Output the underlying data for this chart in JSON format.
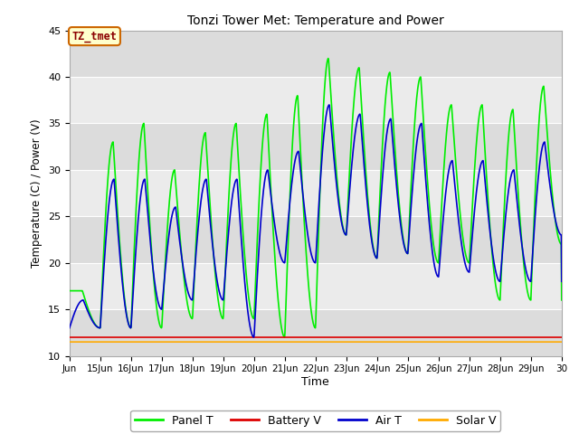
{
  "title": "Tonzi Tower Met: Temperature and Power",
  "xlabel": "Time",
  "ylabel": "Temperature (C) / Power (V)",
  "ylim": [
    10,
    45
  ],
  "yticks": [
    10,
    15,
    20,
    25,
    30,
    35,
    40,
    45
  ],
  "annotation_text": "TZ_tmet",
  "annotation_color": "#8b0000",
  "annotation_bg": "#ffffcc",
  "annotation_border": "#cc6600",
  "colors": {
    "panel_t": "#00ee00",
    "battery_v": "#dd0000",
    "air_t": "#0000cc",
    "solar_v": "#ffaa00"
  },
  "legend_labels": [
    "Panel T",
    "Battery V",
    "Air T",
    "Solar V"
  ],
  "x_tick_labels": [
    "Jun",
    "15Jun",
    "16Jun",
    "17Jun",
    "18Jun",
    "19Jun",
    "20Jun",
    "21Jun",
    "22Jun",
    "23Jun",
    "24Jun",
    "25Jun",
    "26Jun",
    "27Jun",
    "28Jun",
    "29Jun",
    "30"
  ],
  "panel_peaks_y": [
    17,
    33,
    35,
    30,
    34,
    35,
    36,
    38,
    42,
    41,
    40.5,
    40,
    37,
    37,
    36.5,
    39
  ],
  "panel_troughs_y": [
    17,
    13,
    13,
    13,
    14,
    14,
    14,
    12,
    13,
    23,
    20.5,
    21,
    20,
    20,
    16,
    16,
    22
  ],
  "air_peaks_y": [
    16,
    29,
    29,
    26,
    29,
    29,
    30,
    32,
    37,
    36,
    35.5,
    35,
    31,
    31,
    30,
    33
  ],
  "air_troughs_y": [
    13,
    13,
    13,
    15,
    16,
    16,
    12,
    20,
    20,
    23,
    20.5,
    21,
    18.5,
    19,
    18,
    18,
    23
  ],
  "battery_v_val": 12.0,
  "solar_v_val": 11.5,
  "band_colors": [
    "#dcdcdc",
    "#ebebeb"
  ],
  "grid_color": "#ffffff",
  "plot_bg": "#ebebeb",
  "fig_bg": "#ffffff"
}
